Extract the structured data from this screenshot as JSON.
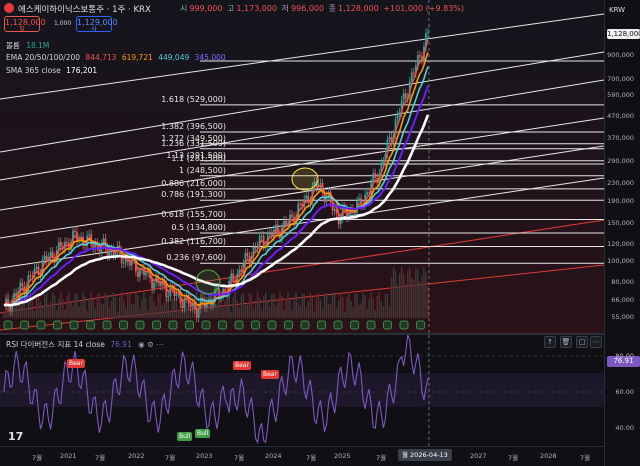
{
  "header": {
    "title": "에스케이하이닉스보통주 · 1주 · KRX",
    "ohlc": {
      "open_label": "시",
      "open": "999,000",
      "high_label": "고",
      "high": "1,173,000",
      "low_label": "저",
      "low": "996,000",
      "close_label": "종",
      "close": "1,128,000",
      "change": "+101,000 (+9.83%)"
    }
  },
  "trade_boxes": {
    "sell_price": "1,128,000",
    "sell_label": "팔",
    "spread": "1,000",
    "buy_price": "1,129,000",
    "buy_label": "사"
  },
  "indicators": {
    "volume_label": "볼륨",
    "volume_value": "18.1M",
    "ema_label": "EMA 20/50/100/200",
    "ema_values": [
      "844,713",
      "619,721",
      "449,049",
      "345,000"
    ],
    "sma_label": "SMA 365 close",
    "sma_value": "176,201"
  },
  "fib_levels": [
    {
      "label": "1.618 (529,000)"
    },
    {
      "label": "1.382 (396,500)"
    },
    {
      "label": "1.272 (349,500)"
    },
    {
      "label": "1.236 (331,500)"
    },
    {
      "label": "1.13 (291,500)"
    },
    {
      "label": "1.1 (281,500)"
    },
    {
      "label": "1 (248,500)"
    },
    {
      "label": "0.886 (216,000)"
    },
    {
      "label": "0.786 (191,300)"
    },
    {
      "label": "0.618 (155,700)"
    },
    {
      "label": "0.5 (134,800)"
    },
    {
      "label": "0.382 (116,700)"
    },
    {
      "label": "0.236 (97,600)"
    }
  ],
  "price_axis": {
    "currency": "KRW",
    "current": "1,128,000",
    "ticks": [
      "900,000",
      "700,000",
      "590,000",
      "470,000",
      "370,000",
      "290,000",
      "230,000",
      "190,000",
      "150,000",
      "120,000",
      "100,000",
      "80,000",
      "66,000",
      "55,000"
    ]
  },
  "rsi": {
    "label": "RSI 다이버전스 지표 14 close",
    "value": "76.91",
    "current": "76.91",
    "ticks": [
      "80.00",
      "60.00",
      "40.00"
    ],
    "bear_label": "Bear",
    "bull_label": "Bull"
  },
  "time_axis": {
    "ticks": [
      {
        "label": "7월"
      },
      {
        "label": "2021"
      },
      {
        "label": "7월"
      },
      {
        "label": "2022"
      },
      {
        "label": "7월"
      },
      {
        "label": "2023"
      },
      {
        "label": "7월"
      },
      {
        "label": "2024"
      },
      {
        "label": "7월"
      },
      {
        "label": "2025"
      },
      {
        "label": "7월"
      },
      {
        "label": "2027"
      },
      {
        "label": "7월"
      },
      {
        "label": "2028"
      },
      {
        "label": "7월"
      }
    ],
    "current_date": "월 2026-04-13"
  },
  "colors": {
    "ema20": "#ef5350",
    "ema50": "#ff9800",
    "ema100": "#4dd0e1",
    "ema200": "#651fff",
    "sma365": "#ffffff",
    "rsi_line": "#7e57c2",
    "up": "#26a69a",
    "down": "#ef5350"
  }
}
